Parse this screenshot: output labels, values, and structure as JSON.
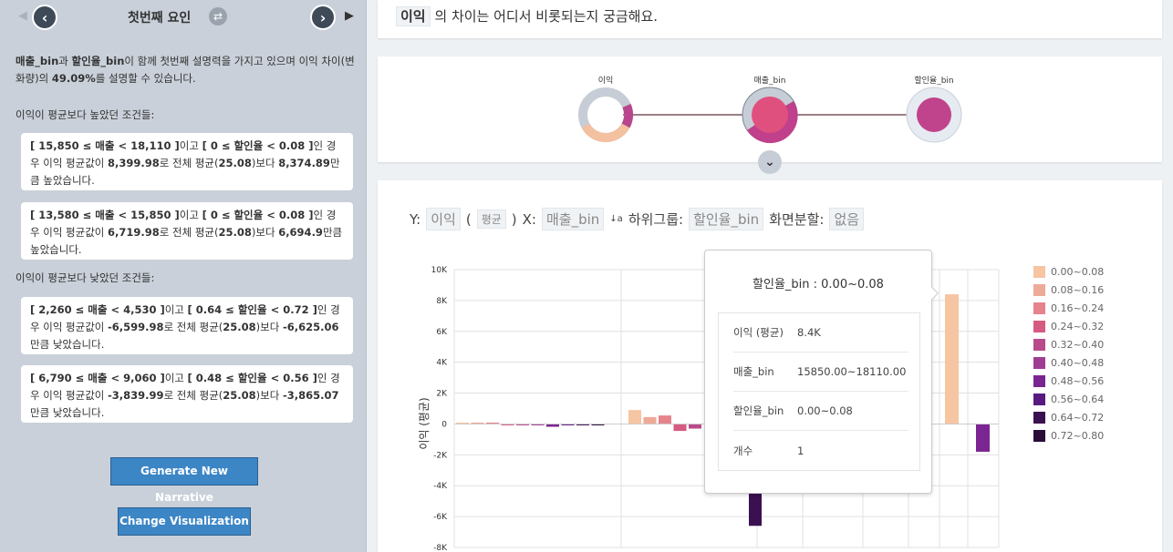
{
  "left": {
    "title": "첫번째 요인",
    "prev": "‹",
    "next": "›",
    "summary": {
      "p1": "매출_bin",
      "p2": "과 ",
      "p3": "할인율_bin",
      "p4": "이 함께 첫번째 설명력을 가지고 있으며 이익 차이(변화량)의 ",
      "p5": "49.09%",
      "p6": "를 설명할 수 있습니다."
    },
    "high_label": "이익이 평균보다 높았던 조건들:",
    "low_label": "이익이 평균보다 낮았던 조건들:",
    "high": [
      {
        "c1": "[ 15,850 ≤ 매출 < 18,110 ]",
        "c2": "이고 ",
        "c3": "[ 0 ≤ 할인율 < 0.08 ]",
        "c4": "인 경우 이익 평균값이 ",
        "c5": "8,399.98",
        "c6": "로 전체 평균(",
        "c7": "25.08",
        "c8": ")보다 ",
        "c9": "8,374.89",
        "c10": "만큼 높았습니다."
      },
      {
        "c1": "[ 13,580 ≤ 매출 < 15,850 ]",
        "c2": "이고 ",
        "c3": "[ 0 ≤ 할인율 < 0.08 ]",
        "c4": "인 경우 이익 평균값이 ",
        "c5": "6,719.98",
        "c6": "로 전체 평균(",
        "c7": "25.08",
        "c8": ")보다 ",
        "c9": "6,694.9",
        "c10": "만큼 높았습니다."
      }
    ],
    "low": [
      {
        "c1": "[ 2,260 ≤ 매출 < 4,530 ]",
        "c2": "이고 ",
        "c3": "[ 0.64 ≤ 할인율 < 0.72 ]",
        "c4": "인 경우 이익 평균값이 ",
        "c5": "-6,599.98",
        "c6": "로 전체 평균(",
        "c7": "25.08",
        "c8": ")보다 ",
        "c9": "-6,625.06",
        "c10": "만큼 낮았습니다."
      },
      {
        "c1": "[ 6,790 ≤ 매출 < 9,060 ]",
        "c2": "이고 ",
        "c3": "[ 0.48 ≤ 할인율 < 0.56 ]",
        "c4": "인 경우 이익 평균값이 ",
        "c5": "-3,839.99",
        "c6": "로 전체 평균(",
        "c7": "25.08",
        "c8": ")보다 ",
        "c9": "-3,865.07",
        "c10": "만큼 낮았습니다."
      }
    ],
    "generate_btn": "Generate New Narrative",
    "change_btn": "Change Visualization"
  },
  "question": {
    "target": "이익",
    "text": "의 차이는 어디서 비롯되는지 궁금해요."
  },
  "graph": {
    "nodes": [
      "이익",
      "매출_bin",
      "할인율_bin"
    ]
  },
  "controls": {
    "y_label": "Y:",
    "y_value": "이익",
    "agg": "평균",
    "x_label": "X:",
    "x_value": "매출_bin",
    "sub_label": "하위그룹:",
    "sub_value": "할인율_bin",
    "split_label": "화면분할:",
    "split_value": "없음"
  },
  "tooltip": {
    "title": "할인율_bin : 0.00~0.08",
    "rows": [
      {
        "k": "이익 (평균)",
        "v": "8.4K"
      },
      {
        "k": "매출_bin",
        "v": "15850.00~18110.00"
      },
      {
        "k": "할인율_bin",
        "v": "0.00~0.08"
      },
      {
        "k": "개수",
        "v": "1"
      }
    ]
  },
  "chart_data": {
    "type": "bar",
    "ylabel": "이익 (평균)",
    "ylim": [
      -8000,
      10000
    ],
    "yticks": [
      "10K",
      "8K",
      "6K",
      "4K",
      "2K",
      "0",
      "-2K",
      "-4K",
      "-6K",
      "-8K"
    ],
    "grid": true,
    "legend": "right",
    "legend_entries": [
      "0.00~0.08",
      "0.08~0.16",
      "0.16~0.24",
      "0.24~0.32",
      "0.32~0.40",
      "0.40~0.48",
      "0.48~0.56",
      "0.56~0.64",
      "0.64~0.72",
      "0.72~0.80"
    ],
    "colors": [
      "#f6c5a2",
      "#eeaa98",
      "#e6838c",
      "#d65b81",
      "#b94b8b",
      "#9f3d92",
      "#7b2592",
      "#581a80",
      "#3a1050",
      "#2a0d38"
    ],
    "bars": [
      {
        "group": 1,
        "sub": 0,
        "value": 30
      },
      {
        "group": 1,
        "sub": 1,
        "value": 60
      },
      {
        "group": 1,
        "sub": 2,
        "value": 20
      },
      {
        "group": 1,
        "sub": 3,
        "value": -30
      },
      {
        "group": 1,
        "sub": 4,
        "value": -60
      },
      {
        "group": 1,
        "sub": 5,
        "value": -60
      },
      {
        "group": 1,
        "sub": 6,
        "value": -180
      },
      {
        "group": 1,
        "sub": 7,
        "value": -60
      },
      {
        "group": 1,
        "sub": 8,
        "value": -60
      },
      {
        "group": 1,
        "sub": 9,
        "value": -90
      },
      {
        "group": 2,
        "sub": 0,
        "value": 900
      },
      {
        "group": 2,
        "sub": 1,
        "value": 450
      },
      {
        "group": 2,
        "sub": 2,
        "value": 550
      },
      {
        "group": 2,
        "sub": 3,
        "value": -450
      },
      {
        "group": 2,
        "sub": 4,
        "value": -300
      },
      {
        "group": 2,
        "sub": 8,
        "value": -6600
      },
      {
        "group": 8,
        "sub": 0,
        "value": 8400
      },
      {
        "group": 9,
        "sub": 6,
        "value": -1800
      }
    ]
  }
}
